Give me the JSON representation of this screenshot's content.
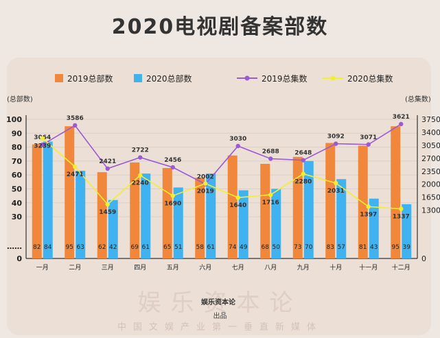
{
  "page": {
    "title": "2020电视剧备案部数",
    "watermark": "娱乐资本论",
    "brand": "娱乐资本论",
    "credit": "出品",
    "slogan": "中国文娱产业第一垂直新媒体"
  },
  "colors": {
    "bar2019": "#f0873a",
    "bar2020": "#3fb2ef",
    "line2019": "#9b59d6",
    "line2020": "#f3ef2e"
  },
  "chart_data": {
    "type": "bar",
    "categories": [
      "一月",
      "二月",
      "三月",
      "四月",
      "五月",
      "六月",
      "七月",
      "八月",
      "九月",
      "十月",
      "十一月",
      "十二月"
    ],
    "left_axis": {
      "label": "(总部数)",
      "ticks": [
        "0",
        "……",
        "30",
        "40",
        "50",
        "60",
        "70",
        "80",
        "90",
        "100"
      ],
      "range": [
        0,
        100
      ]
    },
    "right_axis": {
      "label": "(总集数)",
      "ticks": [
        "0",
        "1300",
        "1650",
        "2000",
        "2350",
        "2700",
        "3050",
        "3400",
        "3750"
      ],
      "range": [
        0,
        3750
      ]
    },
    "bar_series": [
      {
        "name": "2019总部数",
        "values": [
          82,
          95,
          62,
          69,
          65,
          58,
          74,
          68,
          73,
          83,
          81,
          95
        ]
      },
      {
        "name": "2020总部数",
        "values": [
          84,
          63,
          42,
          61,
          51,
          61,
          49,
          50,
          70,
          57,
          43,
          39
        ]
      }
    ],
    "line_series": [
      {
        "name": "2019总集数",
        "values": [
          3064,
          3586,
          2421,
          2722,
          2456,
          2002,
          3030,
          2688,
          2648,
          3092,
          3071,
          3621
        ]
      },
      {
        "name": "2020总集数",
        "values": [
          3239,
          2471,
          1459,
          2240,
          1690,
          2019,
          1640,
          1716,
          2280,
          2031,
          1397,
          1337
        ]
      }
    ],
    "legend_position": "top"
  }
}
